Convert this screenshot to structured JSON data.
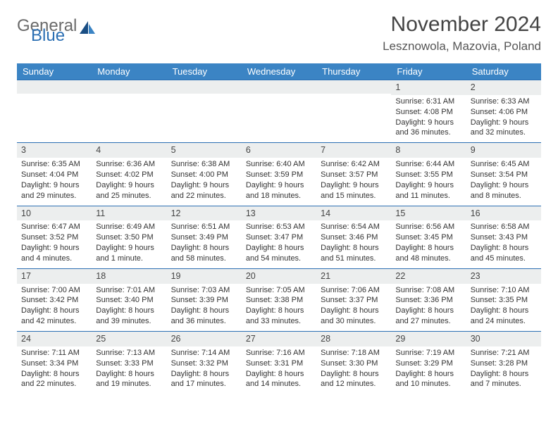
{
  "brand": {
    "part1": "General",
    "part2": "Blue"
  },
  "title": "November 2024",
  "location": "Lesznowola, Mazovia, Poland",
  "colors": {
    "header_bg": "#3b84c4",
    "header_text": "#ffffff",
    "daynum_bg": "#eceeee",
    "rule": "#2b6fb3",
    "logo_gray": "#6a6a6a",
    "logo_blue": "#2b6fb3"
  },
  "weekdays": [
    "Sunday",
    "Monday",
    "Tuesday",
    "Wednesday",
    "Thursday",
    "Friday",
    "Saturday"
  ],
  "weeks": [
    [
      null,
      null,
      null,
      null,
      null,
      {
        "n": "1",
        "sr": "Sunrise: 6:31 AM",
        "ss": "Sunset: 4:08 PM",
        "dl": "Daylight: 9 hours and 36 minutes."
      },
      {
        "n": "2",
        "sr": "Sunrise: 6:33 AM",
        "ss": "Sunset: 4:06 PM",
        "dl": "Daylight: 9 hours and 32 minutes."
      }
    ],
    [
      {
        "n": "3",
        "sr": "Sunrise: 6:35 AM",
        "ss": "Sunset: 4:04 PM",
        "dl": "Daylight: 9 hours and 29 minutes."
      },
      {
        "n": "4",
        "sr": "Sunrise: 6:36 AM",
        "ss": "Sunset: 4:02 PM",
        "dl": "Daylight: 9 hours and 25 minutes."
      },
      {
        "n": "5",
        "sr": "Sunrise: 6:38 AM",
        "ss": "Sunset: 4:00 PM",
        "dl": "Daylight: 9 hours and 22 minutes."
      },
      {
        "n": "6",
        "sr": "Sunrise: 6:40 AM",
        "ss": "Sunset: 3:59 PM",
        "dl": "Daylight: 9 hours and 18 minutes."
      },
      {
        "n": "7",
        "sr": "Sunrise: 6:42 AM",
        "ss": "Sunset: 3:57 PM",
        "dl": "Daylight: 9 hours and 15 minutes."
      },
      {
        "n": "8",
        "sr": "Sunrise: 6:44 AM",
        "ss": "Sunset: 3:55 PM",
        "dl": "Daylight: 9 hours and 11 minutes."
      },
      {
        "n": "9",
        "sr": "Sunrise: 6:45 AM",
        "ss": "Sunset: 3:54 PM",
        "dl": "Daylight: 9 hours and 8 minutes."
      }
    ],
    [
      {
        "n": "10",
        "sr": "Sunrise: 6:47 AM",
        "ss": "Sunset: 3:52 PM",
        "dl": "Daylight: 9 hours and 4 minutes."
      },
      {
        "n": "11",
        "sr": "Sunrise: 6:49 AM",
        "ss": "Sunset: 3:50 PM",
        "dl": "Daylight: 9 hours and 1 minute."
      },
      {
        "n": "12",
        "sr": "Sunrise: 6:51 AM",
        "ss": "Sunset: 3:49 PM",
        "dl": "Daylight: 8 hours and 58 minutes."
      },
      {
        "n": "13",
        "sr": "Sunrise: 6:53 AM",
        "ss": "Sunset: 3:47 PM",
        "dl": "Daylight: 8 hours and 54 minutes."
      },
      {
        "n": "14",
        "sr": "Sunrise: 6:54 AM",
        "ss": "Sunset: 3:46 PM",
        "dl": "Daylight: 8 hours and 51 minutes."
      },
      {
        "n": "15",
        "sr": "Sunrise: 6:56 AM",
        "ss": "Sunset: 3:45 PM",
        "dl": "Daylight: 8 hours and 48 minutes."
      },
      {
        "n": "16",
        "sr": "Sunrise: 6:58 AM",
        "ss": "Sunset: 3:43 PM",
        "dl": "Daylight: 8 hours and 45 minutes."
      }
    ],
    [
      {
        "n": "17",
        "sr": "Sunrise: 7:00 AM",
        "ss": "Sunset: 3:42 PM",
        "dl": "Daylight: 8 hours and 42 minutes."
      },
      {
        "n": "18",
        "sr": "Sunrise: 7:01 AM",
        "ss": "Sunset: 3:40 PM",
        "dl": "Daylight: 8 hours and 39 minutes."
      },
      {
        "n": "19",
        "sr": "Sunrise: 7:03 AM",
        "ss": "Sunset: 3:39 PM",
        "dl": "Daylight: 8 hours and 36 minutes."
      },
      {
        "n": "20",
        "sr": "Sunrise: 7:05 AM",
        "ss": "Sunset: 3:38 PM",
        "dl": "Daylight: 8 hours and 33 minutes."
      },
      {
        "n": "21",
        "sr": "Sunrise: 7:06 AM",
        "ss": "Sunset: 3:37 PM",
        "dl": "Daylight: 8 hours and 30 minutes."
      },
      {
        "n": "22",
        "sr": "Sunrise: 7:08 AM",
        "ss": "Sunset: 3:36 PM",
        "dl": "Daylight: 8 hours and 27 minutes."
      },
      {
        "n": "23",
        "sr": "Sunrise: 7:10 AM",
        "ss": "Sunset: 3:35 PM",
        "dl": "Daylight: 8 hours and 24 minutes."
      }
    ],
    [
      {
        "n": "24",
        "sr": "Sunrise: 7:11 AM",
        "ss": "Sunset: 3:34 PM",
        "dl": "Daylight: 8 hours and 22 minutes."
      },
      {
        "n": "25",
        "sr": "Sunrise: 7:13 AM",
        "ss": "Sunset: 3:33 PM",
        "dl": "Daylight: 8 hours and 19 minutes."
      },
      {
        "n": "26",
        "sr": "Sunrise: 7:14 AM",
        "ss": "Sunset: 3:32 PM",
        "dl": "Daylight: 8 hours and 17 minutes."
      },
      {
        "n": "27",
        "sr": "Sunrise: 7:16 AM",
        "ss": "Sunset: 3:31 PM",
        "dl": "Daylight: 8 hours and 14 minutes."
      },
      {
        "n": "28",
        "sr": "Sunrise: 7:18 AM",
        "ss": "Sunset: 3:30 PM",
        "dl": "Daylight: 8 hours and 12 minutes."
      },
      {
        "n": "29",
        "sr": "Sunrise: 7:19 AM",
        "ss": "Sunset: 3:29 PM",
        "dl": "Daylight: 8 hours and 10 minutes."
      },
      {
        "n": "30",
        "sr": "Sunrise: 7:21 AM",
        "ss": "Sunset: 3:28 PM",
        "dl": "Daylight: 8 hours and 7 minutes."
      }
    ]
  ]
}
